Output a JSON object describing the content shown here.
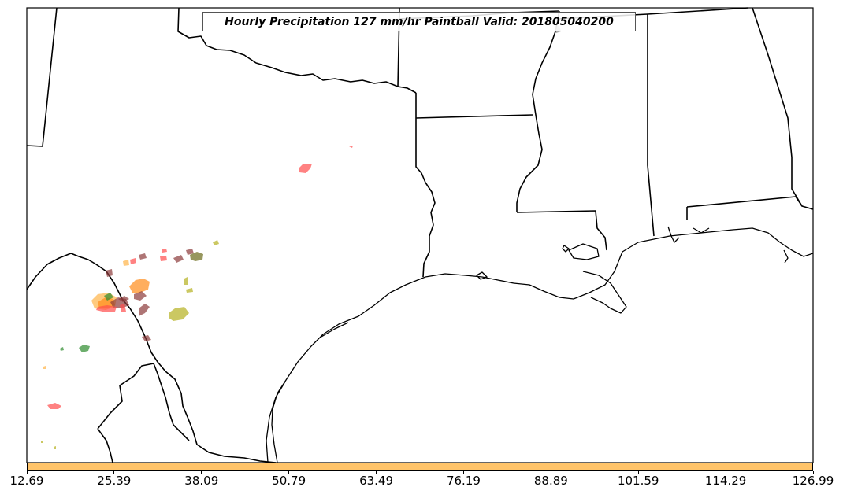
{
  "title": "Hourly Precipitation 127 mm/hr Paintball Valid: 201805040200",
  "colorbar": {
    "color": "#ffc46a",
    "ticks": [
      "12.69",
      "25.39",
      "38.09",
      "50.79",
      "63.49",
      "76.19",
      "88.89",
      "101.59",
      "114.29",
      "126.99"
    ]
  },
  "colors": {
    "red": "#ff4d4d",
    "orange": "#ff8c1a",
    "light_orange": "#ffb347",
    "brown": "#8b3a3a",
    "olive": "#b5b020",
    "green": "#2e8b2e",
    "dark_olive": "#6b6b1a"
  }
}
